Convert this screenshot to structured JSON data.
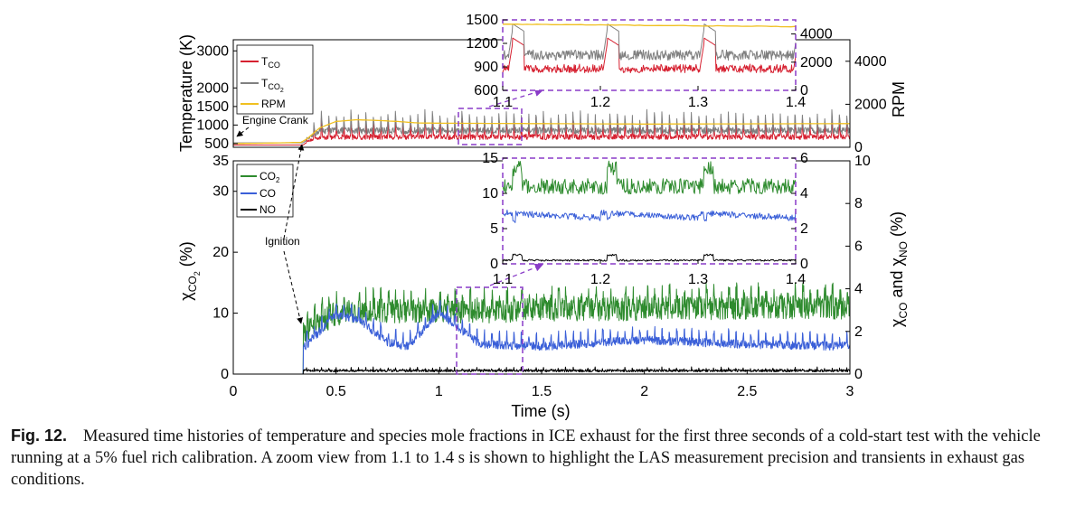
{
  "chart_data": [
    {
      "type": "line",
      "panel": "temperature",
      "x_range": [
        0,
        3
      ],
      "ylabel": "Temperature (K)",
      "y_ticks": [
        500,
        1000,
        1500,
        2000,
        3000
      ],
      "ylim": [
        400,
        3300
      ],
      "y2label": "RPM",
      "y2_ticks": [
        0,
        2000,
        4000
      ],
      "y2_lim": [
        0,
        5000
      ],
      "legend": [
        "T_CO",
        "T_CO2",
        "RPM"
      ],
      "legend_position": "top-left",
      "series": [
        {
          "name": "T_CO",
          "color": "#d62030",
          "axis": "left",
          "start": 0.34,
          "baseline": 700,
          "peaks": 1150,
          "noise": 160
        },
        {
          "name": "T_CO2",
          "color": "#808080",
          "axis": "left",
          "start": 0.34,
          "baseline": 850,
          "peaks": 1350,
          "noise": 180
        },
        {
          "name": "RPM",
          "color": "#f0c020",
          "axis": "right",
          "x": [
            0,
            0.2,
            0.33,
            0.36,
            0.42,
            0.5,
            0.6,
            0.7,
            0.8,
            0.9,
            1.0,
            1.5,
            2.0,
            2.5,
            3.0
          ],
          "y": [
            170,
            200,
            230,
            400,
            900,
            1200,
            1280,
            1250,
            1200,
            1130,
            1120,
            1100,
            1080,
            1090,
            1100
          ]
        }
      ],
      "annotations": [
        "Engine Crank"
      ]
    },
    {
      "type": "line",
      "panel": "temperature-zoom",
      "x_range": [
        1.1,
        1.4
      ],
      "x_ticks": [
        1.1,
        1.2,
        1.3,
        1.4
      ],
      "y_ticks": [
        600,
        900,
        1200,
        1500
      ],
      "ylim": [
        600,
        1500
      ],
      "y2_ticks": [
        0,
        2000,
        4000
      ],
      "y2_lim": [
        0,
        5000
      ]
    },
    {
      "type": "line",
      "panel": "species",
      "x_range": [
        0,
        3
      ],
      "x_ticks": [
        0,
        0.5,
        1,
        1.5,
        2,
        2.5,
        3
      ],
      "xlabel": "Time (s)",
      "ylabel": "χCO2 (%)",
      "y_ticks": [
        0,
        10,
        20,
        30,
        35
      ],
      "ylim": [
        0,
        35
      ],
      "y2label": "χCO and χNO (%)",
      "y2_ticks": [
        0,
        2,
        4,
        6,
        8,
        10
      ],
      "y2_lim": [
        0,
        10
      ],
      "legend": [
        "CO2",
        "CO",
        "NO"
      ],
      "legend_position": "top-left",
      "series": [
        {
          "name": "CO2",
          "color": "#2e8b2e",
          "axis": "left",
          "x": [
            0.34,
            0.4,
            0.5,
            0.7,
            1.0,
            1.5,
            2.0,
            2.5,
            3.0
          ],
          "y": [
            7,
            8,
            10,
            10.5,
            10.2,
            10.5,
            10.8,
            11,
            11
          ]
        },
        {
          "name": "CO",
          "color": "#3a5fd8",
          "axis": "right",
          "x": [
            0.34,
            0.4,
            0.5,
            0.6,
            0.75,
            0.85,
            1.0,
            1.2,
            1.5,
            2.0,
            2.5,
            3.0
          ],
          "y": [
            1.2,
            1.8,
            2.8,
            2.6,
            1.5,
            1.3,
            2.9,
            1.4,
            1.3,
            1.6,
            1.4,
            1.3
          ]
        },
        {
          "name": "NO",
          "color": "#000000",
          "axis": "right",
          "x": [
            0.34,
            1.0,
            2.0,
            3.0
          ],
          "y": [
            0.1,
            0.1,
            0.1,
            0.1
          ]
        }
      ],
      "annotations": [
        "Ignition"
      ]
    },
    {
      "type": "line",
      "panel": "species-zoom",
      "x_range": [
        1.1,
        1.4
      ],
      "x_ticks": [
        1.1,
        1.2,
        1.3,
        1.4
      ],
      "y_ticks": [
        0,
        5,
        10,
        15
      ],
      "ylim": [
        0,
        15
      ],
      "y2_ticks": [
        0,
        2,
        4,
        6
      ],
      "y2_lim": [
        0,
        6
      ]
    }
  ],
  "caption": {
    "label": "Fig. 12.",
    "text": "Measured time histories of temperature and species mole fractions in ICE exhaust for the first three seconds of a cold-start test with the vehicle running at a 5% fuel rich calibration. A zoom view from 1.1 to 1.4 s is shown to highlight the LAS measurement precision and transients in exhaust gas conditions."
  },
  "colors": {
    "tco": "#d62030",
    "tco2": "#808080",
    "rpm": "#f0c020",
    "co2": "#2e8b2e",
    "co": "#3a5fd8",
    "no": "#000000",
    "zoom_box": "#8a3cc8"
  }
}
